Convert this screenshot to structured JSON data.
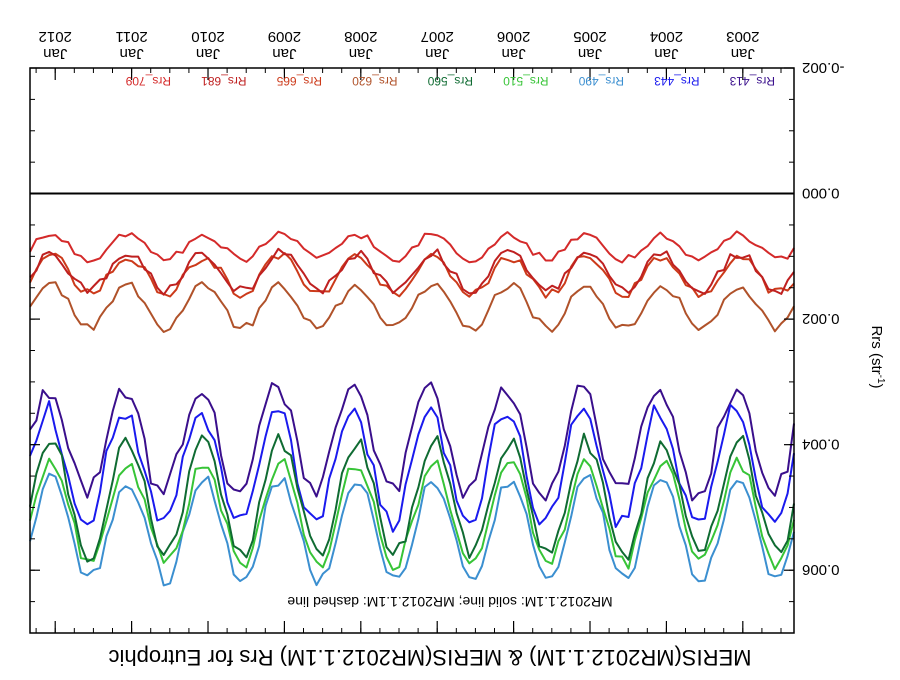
{
  "chart_data": {
    "type": "line",
    "title": "MERIS(MR2012.1.1M) & MERIS(MR2012.1.1M)  Rrs for Eutrophic",
    "subtitle": "MR2012.1.1M: solid line;  MR2012.1.1M: dashed line",
    "ylabel": "Rrs (str",
    "ylabel_sup": "-1",
    "ylabel_tail": ")",
    "ylim": [
      -0.002,
      0.007
    ],
    "yticks": [
      "-0.002",
      "0.000",
      "0.002",
      "0.004",
      "0.006"
    ],
    "ytick_values": [
      -0.002,
      0.0,
      0.002,
      0.004,
      0.006
    ],
    "x_ticks": [
      {
        "month": "Jan",
        "year": "2003",
        "t": 2003
      },
      {
        "month": "Jan",
        "year": "2004",
        "t": 2004
      },
      {
        "month": "Jan",
        "year": "2005",
        "t": 2005
      },
      {
        "month": "Jan",
        "year": "2006",
        "t": 2006
      },
      {
        "month": "Jan",
        "year": "2007",
        "t": 2007
      },
      {
        "month": "Jan",
        "year": "2008",
        "t": 2008
      },
      {
        "month": "Jan",
        "year": "2009",
        "t": 2009
      },
      {
        "month": "Jan",
        "year": "2010",
        "t": 2010
      },
      {
        "month": "Jan",
        "year": "2011",
        "t": 2011
      },
      {
        "month": "Jan",
        "year": "2012",
        "t": 2012
      }
    ],
    "xlim": [
      2002.33,
      2012.33
    ],
    "x_start": "2002-05",
    "zero_line": 0.0,
    "series": [
      {
        "name": "Rrs_413",
        "color": "#3a0f8c",
        "base": 0.00395,
        "amp": 0.00085,
        "phase": 0.6,
        "noise": 0.00018
      },
      {
        "name": "Rrs_443",
        "color": "#1a1aee",
        "base": 0.00435,
        "amp": 0.0009,
        "phase": 0.6,
        "noise": 0.00016
      },
      {
        "name": "Rrs_490",
        "color": "#3b8fd0",
        "base": 0.00535,
        "amp": 0.0008,
        "phase": 0.55,
        "noise": 0.00012
      },
      {
        "name": "Rrs_510",
        "color": "#37c437",
        "base": 0.0051,
        "amp": 0.0008,
        "phase": 0.55,
        "noise": 0.00012
      },
      {
        "name": "Rrs_560",
        "color": "#0f6b32",
        "base": 0.00485,
        "amp": 0.0009,
        "phase": 0.55,
        "noise": 0.00014
      },
      {
        "name": "Rrs_620",
        "color": "#b0522a",
        "base": 0.0018,
        "amp": 0.00035,
        "phase": 0.55,
        "noise": 8e-05
      },
      {
        "name": "Rrs_665",
        "color": "#cc3a1a",
        "base": 0.0013,
        "amp": 0.0003,
        "phase": 0.55,
        "noise": 8e-05
      },
      {
        "name": "Rrs_681",
        "color": "#bf2020",
        "base": 0.00125,
        "amp": 0.0003,
        "phase": 0.55,
        "noise": 8e-05
      },
      {
        "name": "Rrs_709",
        "color": "#d42a2a",
        "base": 0.00085,
        "amp": 0.0002,
        "phase": 0.55,
        "noise": 6e-05
      }
    ],
    "legend": {
      "placement": "top",
      "entries": [
        "Rrs_413",
        "Rrs_443",
        "Rrs_490",
        "Rrs_510",
        "Rrs_560",
        "Rrs_620",
        "Rrs_665",
        "Rrs_681",
        "Rrs_709"
      ]
    },
    "grid": false,
    "orientation": "rotated-180"
  }
}
